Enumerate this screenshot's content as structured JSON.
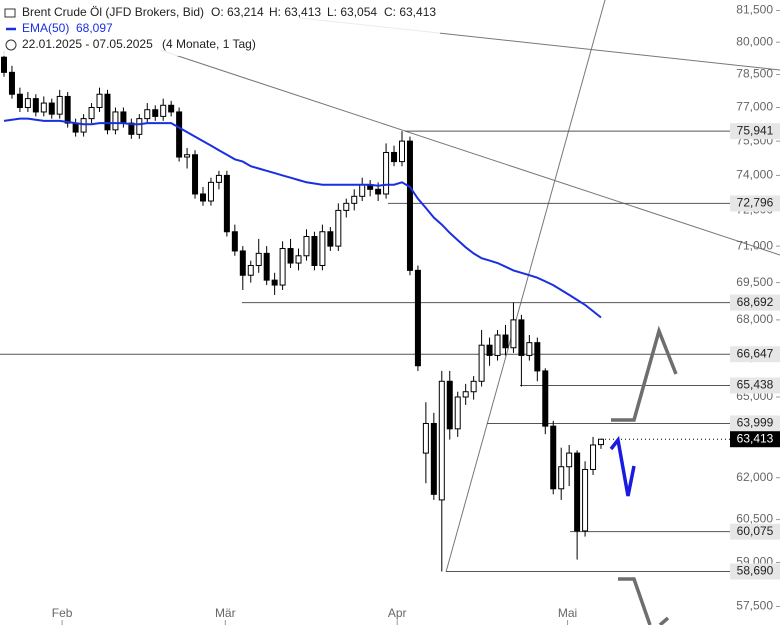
{
  "chart_data": {
    "type": "candlestick",
    "title": "Brent Crude Öl (JFD Brokers, Bid)",
    "header_stats": [
      "O: 63,214",
      "H: 63,413",
      "L: 63,054",
      "C: 63,413"
    ],
    "date_range": "22.01.2025 - 07.05.2025",
    "period": "(4 Monate, 1 Tag)",
    "ylim": [
      56880,
      82000
    ],
    "log": true,
    "yticks": [
      {
        "value": 57500,
        "label": "57,500"
      },
      {
        "value": 59000,
        "label": "59,000"
      },
      {
        "value": 60500,
        "label": "60,500"
      },
      {
        "value": 62000,
        "label": "62,000"
      },
      {
        "value": 63500,
        "label": "63,500"
      },
      {
        "value": 65000,
        "label": "65,000"
      },
      {
        "value": 66500,
        "label": "66,500"
      },
      {
        "value": 68000,
        "label": "68,000"
      },
      {
        "value": 69500,
        "label": "69,500"
      },
      {
        "value": 71000,
        "label": "71,000"
      },
      {
        "value": 72500,
        "label": "72,500"
      },
      {
        "value": 74000,
        "label": "74,000"
      },
      {
        "value": 75500,
        "label": "75,500"
      },
      {
        "value": 77000,
        "label": "77,000"
      },
      {
        "value": 78500,
        "label": "78,500"
      },
      {
        "value": 80000,
        "label": "80,000"
      },
      {
        "value": 81500,
        "label": "81,500"
      }
    ],
    "months": [
      "Feb",
      "Mär",
      "Apr",
      "Mai"
    ],
    "levels": [
      {
        "value": 75941,
        "label": "75,941"
      },
      {
        "value": 72796,
        "label": "72,796"
      },
      {
        "value": 68692,
        "label": "68,692"
      },
      {
        "value": 66647,
        "label": "66,647"
      },
      {
        "value": 65438,
        "label": "65,438"
      },
      {
        "value": 63999,
        "label": "63,999"
      },
      {
        "value": 60075,
        "label": "60,075"
      },
      {
        "value": 58690,
        "label": "58,690"
      }
    ],
    "last": {
      "value": 63413,
      "label": "63,413"
    },
    "ema": {
      "name": "EMA(50)",
      "value_label": "68,097",
      "color": "#1a2fe0",
      "values": [
        76400,
        76450,
        76500,
        76500,
        76450,
        76400,
        76400,
        76400,
        76350,
        76300,
        76250,
        76250,
        76300,
        76300,
        76300,
        76300,
        76250,
        76250,
        76300,
        76300,
        76300,
        76300,
        76100,
        75900,
        75700,
        75500,
        75300,
        75100,
        74900,
        74700,
        74600,
        74400,
        74300,
        74200,
        74100,
        74000,
        73900,
        73800,
        73700,
        73650,
        73600,
        73600,
        73600,
        73600,
        73600,
        73600,
        73600,
        73550,
        73600,
        73600,
        73700,
        73500,
        73000,
        72600,
        72200,
        71900,
        71550,
        71250,
        70950,
        70700,
        70500,
        70400,
        70300,
        70150,
        70000,
        69900,
        69800,
        69700,
        69550,
        69400,
        69200,
        69000,
        68800,
        68600,
        68350,
        68097
      ]
    },
    "ohlc": [
      [
        79300,
        79600,
        78400,
        78600
      ],
      [
        78600,
        78900,
        77400,
        77600
      ],
      [
        77600,
        77900,
        76800,
        77000
      ],
      [
        77000,
        77700,
        76800,
        77400
      ],
      [
        77400,
        77600,
        76600,
        76800
      ],
      [
        76800,
        77500,
        76600,
        77200
      ],
      [
        77200,
        77400,
        76500,
        76700
      ],
      [
        76700,
        77800,
        76500,
        77500
      ],
      [
        77500,
        77700,
        76100,
        76300
      ],
      [
        76300,
        76500,
        75700,
        75900
      ],
      [
        75900,
        76700,
        75700,
        76500
      ],
      [
        76500,
        77200,
        76300,
        77000
      ],
      [
        77000,
        77900,
        76800,
        77600
      ],
      [
        77600,
        77800,
        75800,
        76000
      ],
      [
        76000,
        77000,
        75800,
        76800
      ],
      [
        76800,
        77000,
        76100,
        76300
      ],
      [
        76300,
        76500,
        75600,
        75800
      ],
      [
        75800,
        76700,
        75600,
        76500
      ],
      [
        76500,
        77200,
        76300,
        76900
      ],
      [
        76900,
        77100,
        76400,
        76600
      ],
      [
        76600,
        77400,
        76400,
        77100
      ],
      [
        77100,
        77300,
        76600,
        76800
      ],
      [
        76800,
        77000,
        74600,
        74800
      ],
      [
        74800,
        75200,
        74300,
        74900
      ],
      [
        74900,
        75100,
        73000,
        73200
      ],
      [
        73200,
        73500,
        72700,
        72900
      ],
      [
        72900,
        73900,
        72700,
        73700
      ],
      [
        73700,
        74200,
        73400,
        74000
      ],
      [
        74000,
        74200,
        71400,
        71600
      ],
      [
        71600,
        71900,
        70600,
        70800
      ],
      [
        70800,
        71000,
        69200,
        69800
      ],
      [
        69800,
        70400,
        69500,
        70200
      ],
      [
        70200,
        71300,
        69900,
        70700
      ],
      [
        70700,
        71000,
        69400,
        69600
      ],
      [
        69600,
        69900,
        69000,
        69400
      ],
      [
        69400,
        71200,
        69200,
        70900
      ],
      [
        70900,
        71300,
        70100,
        70300
      ],
      [
        70300,
        70900,
        70000,
        70600
      ],
      [
        70600,
        71700,
        70400,
        71400
      ],
      [
        71400,
        71600,
        70000,
        70200
      ],
      [
        70200,
        71900,
        70000,
        71600
      ],
      [
        71600,
        71800,
        70800,
        71000
      ],
      [
        71000,
        72800,
        70800,
        72500
      ],
      [
        72500,
        73000,
        72200,
        72800
      ],
      [
        72800,
        73400,
        72500,
        73100
      ],
      [
        73100,
        73900,
        72900,
        73600
      ],
      [
        73600,
        73800,
        73100,
        73400
      ],
      [
        73400,
        73700,
        72900,
        73200
      ],
      [
        73200,
        75400,
        73000,
        75000
      ],
      [
        75000,
        75300,
        74400,
        74600
      ],
      [
        74600,
        75941,
        74400,
        75500
      ],
      [
        75500,
        75700,
        69800,
        70000
      ],
      [
        70000,
        70200,
        66000,
        66200
      ],
      [
        62900,
        64800,
        61800,
        64000
      ],
      [
        64000,
        64400,
        61200,
        61400
      ],
      [
        61200,
        66000,
        58690,
        65600
      ],
      [
        65600,
        66000,
        63400,
        63800
      ],
      [
        63800,
        65200,
        63500,
        65000
      ],
      [
        65000,
        65500,
        64700,
        65200
      ],
      [
        65200,
        65800,
        64900,
        65600
      ],
      [
        65600,
        67600,
        65400,
        67000
      ],
      [
        67000,
        67300,
        66200,
        66600
      ],
      [
        66600,
        67600,
        66400,
        67400
      ],
      [
        67400,
        67800,
        66600,
        66900
      ],
      [
        66900,
        68692,
        66700,
        68000
      ],
      [
        68000,
        68200,
        65400,
        66600
      ],
      [
        66600,
        67400,
        66400,
        67100
      ],
      [
        67100,
        67300,
        65600,
        66000
      ],
      [
        66000,
        66100,
        63600,
        63900
      ],
      [
        63900,
        64100,
        61400,
        61600
      ],
      [
        61600,
        63100,
        61200,
        62400
      ],
      [
        62400,
        63200,
        61700,
        62900
      ],
      [
        62900,
        63000,
        59100,
        60100
      ],
      [
        60100,
        62600,
        59900,
        62300
      ],
      [
        62300,
        63500,
        62100,
        63200
      ],
      [
        63214,
        63413,
        63054,
        63413
      ]
    ]
  }
}
